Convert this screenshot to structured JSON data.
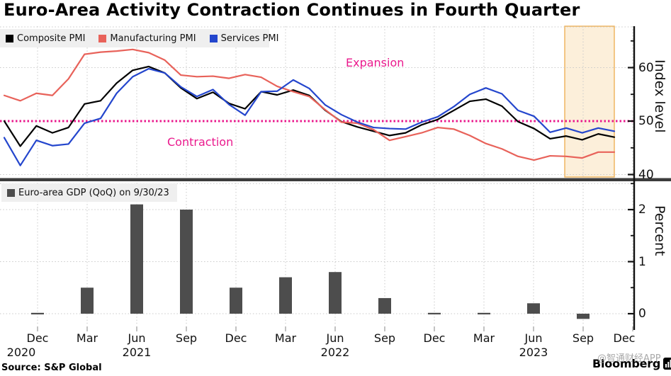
{
  "title": "Euro-Area Activity Contraction Continues in Fourth Quarter",
  "annotations": {
    "expansion": "Expansion",
    "contraction": "Contraction"
  },
  "footer": {
    "source": "Source: S&P Global",
    "brand": "Bloomberg",
    "watermark": "@智通财经APP"
  },
  "colors": {
    "composite": "#000000",
    "manufacturing": "#e8625a",
    "services": "#2446cd",
    "threshold": "#ea1a8d",
    "band_fill": "#fcefda",
    "band_edge": "#eeb157",
    "bar": "#4d4d4d",
    "grid": "#c9c9c9",
    "legend_bg": "#efefef",
    "divider": "#3c3c3c",
    "axis": "#111111"
  },
  "x_axis": {
    "tick_labels": [
      "Dec",
      "Mar",
      "Jun",
      "Sep",
      "Dec",
      "Mar",
      "Jun",
      "Sep",
      "Dec",
      "Mar",
      "Jun",
      "Sep",
      "Dec"
    ],
    "year_labels": [
      {
        "text": "2020",
        "tick": 0
      },
      {
        "text": "2021",
        "tick": 2
      },
      {
        "text": "2022",
        "tick": 6
      },
      {
        "text": "2023",
        "tick": 10
      }
    ]
  },
  "chart_data": [
    {
      "type": "line",
      "panel": "top",
      "ylabel": "Index level",
      "ylim": [
        38,
        68
      ],
      "yticks": [
        40,
        50,
        60
      ],
      "yticks_minor": [
        45,
        55,
        65
      ],
      "threshold_value": 50,
      "highlight_span": {
        "from": "Sep 2023",
        "to": "Dec 2023",
        "note": "fourth quarter"
      },
      "x_months": [
        "Oct 2020",
        "Nov 2020",
        "Dec 2020",
        "Jan 2021",
        "Feb 2021",
        "Mar 2021",
        "Apr 2021",
        "May 2021",
        "Jun 2021",
        "Jul 2021",
        "Aug 2021",
        "Sep 2021",
        "Oct 2021",
        "Nov 2021",
        "Dec 2021",
        "Jan 2022",
        "Feb 2022",
        "Mar 2022",
        "Apr 2022",
        "May 2022",
        "Jun 2022",
        "Jul 2022",
        "Aug 2022",
        "Sep 2022",
        "Oct 2022",
        "Nov 2022",
        "Dec 2022",
        "Jan 2023",
        "Feb 2023",
        "Mar 2023",
        "Apr 2023",
        "May 2023",
        "Jun 2023",
        "Jul 2023",
        "Aug 2023",
        "Sep 2023",
        "Oct 2023",
        "Nov 2023",
        "Dec 2023"
      ],
      "series": [
        {
          "name": "Composite PMI",
          "color_key": "composite",
          "values": [
            50.0,
            45.3,
            49.1,
            47.8,
            48.8,
            53.2,
            53.8,
            57.1,
            59.5,
            60.2,
            59.0,
            56.2,
            54.2,
            55.4,
            53.3,
            52.3,
            55.5,
            54.9,
            55.8,
            54.8,
            52.0,
            49.9,
            48.9,
            48.1,
            47.3,
            47.8,
            49.3,
            50.3,
            52.0,
            53.7,
            54.1,
            52.8,
            49.9,
            48.6,
            46.7,
            47.2,
            46.5,
            47.6,
            47.0
          ]
        },
        {
          "name": "Manufacturing PMI",
          "color_key": "manufacturing",
          "values": [
            54.8,
            53.8,
            55.2,
            54.8,
            57.9,
            62.5,
            62.9,
            63.1,
            63.4,
            62.8,
            61.4,
            58.6,
            58.3,
            58.4,
            58.0,
            58.7,
            58.2,
            56.5,
            55.5,
            54.6,
            52.1,
            49.8,
            49.6,
            48.4,
            46.4,
            47.1,
            47.8,
            48.8,
            48.5,
            47.3,
            45.8,
            44.8,
            43.4,
            42.7,
            43.5,
            43.4,
            43.1,
            44.2,
            44.2
          ]
        },
        {
          "name": "Services PMI",
          "color_key": "services",
          "values": [
            46.9,
            41.7,
            46.4,
            45.4,
            45.7,
            49.6,
            50.5,
            55.2,
            58.3,
            59.8,
            59.0,
            56.4,
            54.6,
            55.9,
            53.1,
            51.1,
            55.5,
            55.6,
            57.7,
            56.1,
            53.0,
            51.2,
            49.8,
            48.8,
            48.6,
            48.5,
            49.8,
            50.8,
            52.7,
            55.0,
            56.2,
            55.1,
            52.0,
            50.9,
            47.9,
            48.7,
            47.8,
            48.7,
            48.1
          ]
        }
      ]
    },
    {
      "type": "bar",
      "panel": "bottom",
      "legend": "Euro-area GDP (QoQ) on 9/30/23",
      "ylabel": "Percent",
      "ylim": [
        -0.35,
        2.5
      ],
      "yticks": [
        0,
        1,
        2
      ],
      "yticks_minor": [
        0.5,
        1.5,
        2.5
      ],
      "categories": [
        "Dec 2020",
        "Mar 2021",
        "Jun 2021",
        "Sep 2021",
        "Dec 2021",
        "Mar 2022",
        "Jun 2022",
        "Sep 2022",
        "Dec 2022",
        "Mar 2023",
        "Jun 2023",
        "Sep 2023"
      ],
      "values": [
        0.0,
        0.5,
        2.1,
        2.0,
        0.5,
        0.7,
        0.8,
        0.3,
        0.0,
        0.0,
        0.2,
        -0.1
      ]
    }
  ]
}
